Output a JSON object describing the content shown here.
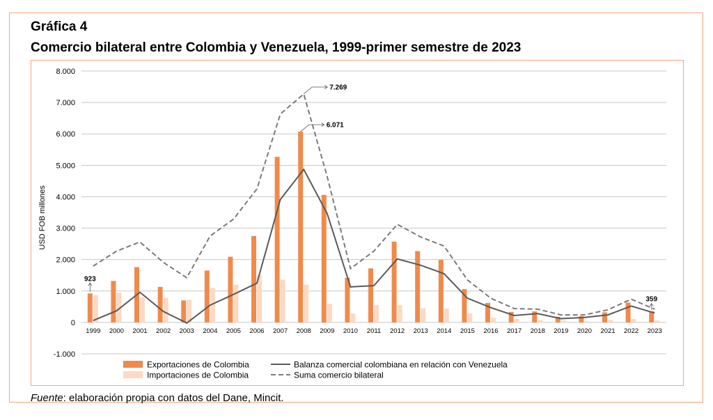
{
  "header": {
    "figure_label": "Gráfica 4",
    "title": "Comercio bilateral entre Colombia y Venezuela, 1999-primer semestre de 2023"
  },
  "source": {
    "prefix": "Fuente",
    "text": ": elaboración propia con datos del Dane, Mincit."
  },
  "colors": {
    "exports": "#f08a4b",
    "imports": "#fcd9c3",
    "balance": "#5a5a5a",
    "sum": "#7a7a7a",
    "grid": "#c8c8c8",
    "frame": "#f4a57c"
  },
  "chart_data": {
    "type": "bar",
    "ylabel": "USD FOB millones",
    "ylim": [
      -1000,
      8000
    ],
    "yticks": [
      -1000,
      0,
      1000,
      2000,
      3000,
      4000,
      5000,
      6000,
      7000,
      8000
    ],
    "ytick_labels": [
      "-1.000",
      "0",
      "1.000",
      "2.000",
      "3.000",
      "4.000",
      "5.000",
      "6.000",
      "7.000",
      "8.000"
    ],
    "grid": true,
    "categories": [
      "1999",
      "2000",
      "2001",
      "2002",
      "2003",
      "2004",
      "2005",
      "2006",
      "2007",
      "2008",
      "2009",
      "2010",
      "2011",
      "2012",
      "2013",
      "2014",
      "2015",
      "2016",
      "2017",
      "2018",
      "2019",
      "2020",
      "2021",
      "2022",
      "2023"
    ],
    "series": [
      {
        "name": "Exportaciones de Colombia",
        "kind": "bar",
        "values": [
          923,
          1320,
          1760,
          1130,
          700,
          1650,
          2090,
          2750,
          5270,
          6071,
          4060,
          1420,
          1720,
          2570,
          2270,
          1990,
          1060,
          620,
          330,
          350,
          180,
          200,
          320,
          630,
          359
        ]
      },
      {
        "name": "Importaciones de Colombia",
        "kind": "bar",
        "values": [
          870,
          950,
          800,
          780,
          720,
          1100,
          1200,
          1500,
          1360,
          1200,
          590,
          290,
          550,
          550,
          450,
          440,
          290,
          150,
          110,
          70,
          60,
          40,
          80,
          110,
          60
        ]
      },
      {
        "name": "Balanza comercial colombiana en relación con Venezuela",
        "kind": "line",
        "values": [
          60,
          370,
          960,
          350,
          -20,
          550,
          890,
          1250,
          3910,
          4871,
          3470,
          1130,
          1170,
          2020,
          1820,
          1550,
          770,
          470,
          220,
          280,
          120,
          160,
          240,
          520,
          299
        ]
      },
      {
        "name": "Suma comercio bilateral",
        "kind": "dashed",
        "values": [
          1793,
          2270,
          2560,
          1910,
          1420,
          2750,
          3290,
          4250,
          6630,
          7269,
          4650,
          1710,
          2270,
          3120,
          2720,
          2430,
          1350,
          770,
          440,
          420,
          240,
          240,
          400,
          740,
          419
        ]
      }
    ],
    "annotations": [
      {
        "label": "923",
        "category": "1999",
        "series": "Exportaciones de Colombia"
      },
      {
        "label": "7.269",
        "category": "2008",
        "series": "Suma comercio bilateral"
      },
      {
        "label": "6.071",
        "category": "2008",
        "series": "Exportaciones de Colombia"
      },
      {
        "label": "359",
        "category": "2023",
        "series": "Exportaciones de Colombia"
      }
    ],
    "legend_position": "bottom"
  }
}
